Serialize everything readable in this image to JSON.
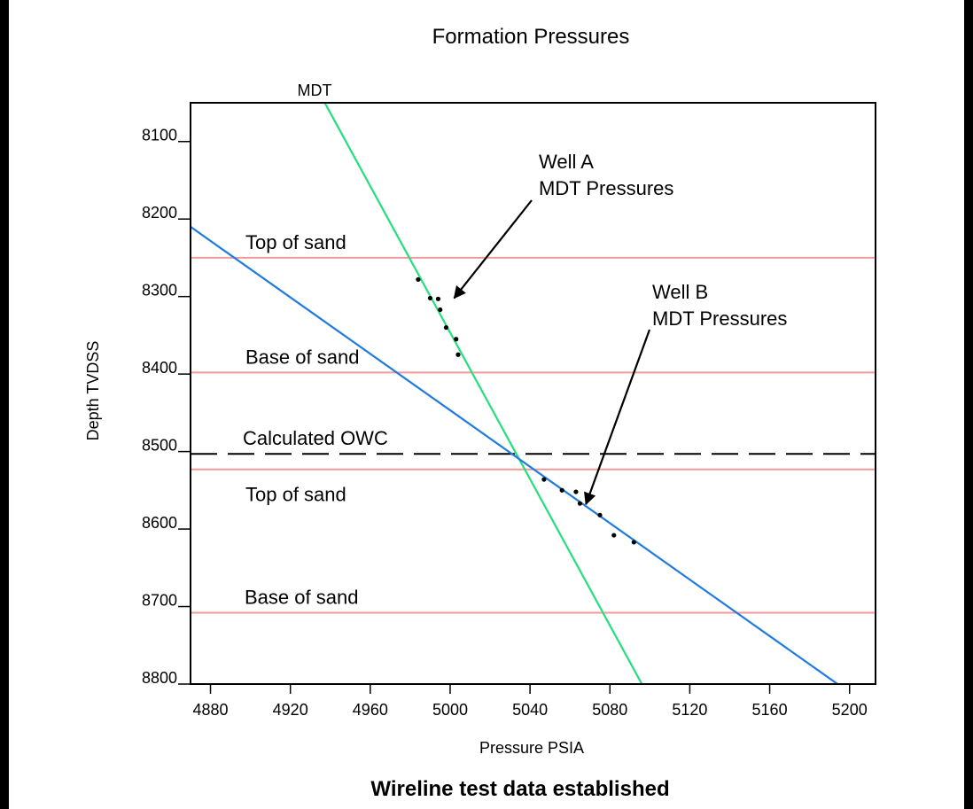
{
  "chart_data": {
    "type": "line",
    "title": "Formation Pressures",
    "xlabel": "Pressure PSIA",
    "ylabel": "Depth TVDSS",
    "caption": "Wireline test data established",
    "xlim": [
      4870,
      5213
    ],
    "ylim": [
      8800,
      8050
    ],
    "x_ticks": [
      4880,
      4920,
      4960,
      5000,
      5040,
      5080,
      5120,
      5160,
      5200
    ],
    "y_ticks": [
      8100,
      8200,
      8300,
      8400,
      8500,
      8600,
      8700,
      8800
    ],
    "colors": {
      "green": "#22e07a",
      "blue": "#1f7be0",
      "red": "#f09a9a",
      "black": "#000000"
    },
    "lines": [
      {
        "id": "mdt-gradient",
        "label": "MDT",
        "color": "#22e07a",
        "points": [
          [
            4936.8,
            8048
          ],
          [
            5096,
            8800
          ]
        ]
      },
      {
        "id": "blue-gradient",
        "color": "#1f7be0",
        "points": [
          [
            4870,
            8210
          ],
          [
            5194,
            8800
          ]
        ]
      }
    ],
    "horizontal_lines": [
      {
        "id": "top-sand-1",
        "label": "Top of sand",
        "y": 8250,
        "color": "#f09a9a"
      },
      {
        "id": "base-sand-1",
        "label": "Base of sand",
        "y": 8398,
        "color": "#f09a9a"
      },
      {
        "id": "owc",
        "label": "Calculated OWC",
        "y": 8503,
        "color": "#000000",
        "dashed": true
      },
      {
        "id": "top-sand-2",
        "label": "Top of sand",
        "y": 8523,
        "color": "#f09a9a"
      },
      {
        "id": "base-sand-2",
        "label": "Base of sand",
        "y": 8708,
        "color": "#f09a9a"
      }
    ],
    "well_a_points": [
      [
        4984,
        8278
      ],
      [
        4990,
        8302
      ],
      [
        4994,
        8303
      ],
      [
        4995,
        8317
      ],
      [
        4998,
        8340
      ],
      [
        5003,
        8355
      ],
      [
        5004,
        8375
      ]
    ],
    "well_b_points": [
      [
        5047,
        8536
      ],
      [
        5056,
        8550
      ],
      [
        5063,
        8552
      ],
      [
        5065,
        8567
      ],
      [
        5075,
        8582
      ],
      [
        5082,
        8608
      ],
      [
        5092,
        8617
      ]
    ],
    "annotations": [
      {
        "id": "well-a",
        "lines": [
          "Well A",
          "MDT Pressures"
        ],
        "arrow_to": [
          5002,
          8302
        ]
      },
      {
        "id": "well-b",
        "lines": [
          "Well B",
          "MDT Pressures"
        ],
        "arrow_to": [
          5068,
          8568
        ]
      }
    ]
  }
}
